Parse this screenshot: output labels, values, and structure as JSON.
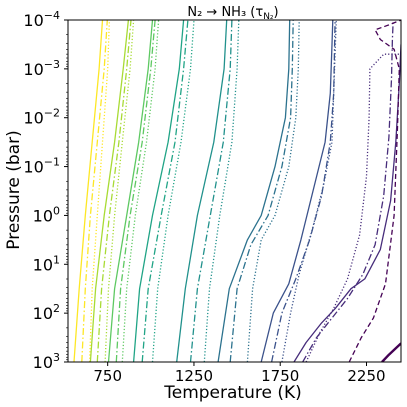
{
  "chart_data": {
    "type": "line",
    "title": "N₂ → NH₃ (τ",
    "title_subscript": "N₂",
    "title_tail": ")",
    "xlabel": "Temperature (K)",
    "ylabel": "Pressure (bar)",
    "xlim": [
      520,
      2450
    ],
    "ylim_log10": [
      -4,
      3
    ],
    "y_inverted": true,
    "y_scale": "log",
    "grid": false,
    "legend": "none",
    "x_ticks": [
      {
        "value": 750,
        "label": "750"
      },
      {
        "value": 1250,
        "label": "1250"
      },
      {
        "value": 1750,
        "label": "1750"
      },
      {
        "value": 2250,
        "label": "2250"
      }
    ],
    "y_ticks": [
      {
        "value": -4,
        "base": "10",
        "exp": "−4"
      },
      {
        "value": -3,
        "base": "10",
        "exp": "−3"
      },
      {
        "value": -2,
        "base": "10",
        "exp": "−2"
      },
      {
        "value": -1,
        "base": "10",
        "exp": "−1"
      },
      {
        "value": 0,
        "base": "10",
        "exp": "0"
      },
      {
        "value": 1,
        "base": "10",
        "exp": "1"
      },
      {
        "value": 2,
        "base": "10",
        "exp": "2"
      },
      {
        "value": 3,
        "base": "10",
        "exp": "3"
      }
    ],
    "series": [
      {
        "color": "#fde725",
        "dash": "solid",
        "points": [
          [
            555,
            3
          ],
          [
            585,
            1.5
          ],
          [
            620,
            0
          ],
          [
            660,
            -1.5
          ],
          [
            700,
            -3
          ],
          [
            720,
            -4
          ]
        ]
      },
      {
        "color": "#fde725",
        "dash": "dashdot",
        "points": [
          [
            600,
            3
          ],
          [
            620,
            1.5
          ],
          [
            650,
            0
          ],
          [
            690,
            -1.5
          ],
          [
            730,
            -3
          ],
          [
            748,
            -4
          ]
        ]
      },
      {
        "color": "#fde725",
        "dash": "dotted",
        "points": [
          [
            645,
            3
          ],
          [
            660,
            1.5
          ],
          [
            690,
            0
          ],
          [
            720,
            -1.5
          ],
          [
            750,
            -3
          ],
          [
            760,
            -4
          ]
        ]
      },
      {
        "color": "#a8db34",
        "dash": "solid",
        "points": [
          [
            650,
            3
          ],
          [
            680,
            1.5
          ],
          [
            730,
            0
          ],
          [
            790,
            -1.5
          ],
          [
            840,
            -3
          ],
          [
            870,
            -4
          ]
        ]
      },
      {
        "color": "#a8db34",
        "dash": "dashdot",
        "points": [
          [
            690,
            3
          ],
          [
            715,
            1.5
          ],
          [
            760,
            0
          ],
          [
            815,
            -1.5
          ],
          [
            860,
            -3
          ],
          [
            885,
            -4
          ]
        ]
      },
      {
        "color": "#a8db34",
        "dash": "dotted",
        "points": [
          [
            735,
            3
          ],
          [
            755,
            1.5
          ],
          [
            790,
            0
          ],
          [
            835,
            -1.5
          ],
          [
            880,
            -3
          ],
          [
            900,
            -4
          ]
        ]
      },
      {
        "color": "#5ec962",
        "dash": "solid",
        "points": [
          [
            755,
            3
          ],
          [
            790,
            1.5
          ],
          [
            860,
            0
          ],
          [
            930,
            -1.5
          ],
          [
            985,
            -3
          ],
          [
            1010,
            -4
          ]
        ]
      },
      {
        "color": "#5ec962",
        "dash": "dashdot",
        "points": [
          [
            800,
            3
          ],
          [
            825,
            1.5
          ],
          [
            880,
            0
          ],
          [
            950,
            -1.5
          ],
          [
            1000,
            -3
          ],
          [
            1025,
            -4
          ]
        ]
      },
      {
        "color": "#5ec962",
        "dash": "dotted",
        "points": [
          [
            835,
            3
          ],
          [
            860,
            1.5
          ],
          [
            910,
            0
          ],
          [
            975,
            -1.5
          ],
          [
            1025,
            -3
          ],
          [
            1045,
            -4
          ]
        ]
      },
      {
        "color": "#20a486",
        "dash": "solid",
        "points": [
          [
            900,
            3
          ],
          [
            935,
            1.5
          ],
          [
            1010,
            0
          ],
          [
            1100,
            -1.5
          ],
          [
            1165,
            -3
          ],
          [
            1190,
            -4
          ]
        ]
      },
      {
        "color": "#20a486",
        "dash": "dashdot",
        "points": [
          [
            950,
            3
          ],
          [
            985,
            1.5
          ],
          [
            1060,
            0
          ],
          [
            1140,
            -1.5
          ],
          [
            1190,
            -3
          ],
          [
            1215,
            -4
          ]
        ]
      },
      {
        "color": "#20a486",
        "dash": "dotted",
        "points": [
          [
            1010,
            3
          ],
          [
            1040,
            1.5
          ],
          [
            1100,
            0
          ],
          [
            1175,
            -1.5
          ],
          [
            1230,
            -3
          ],
          [
            1250,
            -4
          ]
        ]
      },
      {
        "color": "#21918c",
        "dash": "solid",
        "points": [
          [
            1150,
            3
          ],
          [
            1200,
            1.5
          ],
          [
            1270,
            0
          ],
          [
            1365,
            -1.5
          ],
          [
            1425,
            -3
          ],
          [
            1440,
            -4
          ]
        ]
      },
      {
        "color": "#21918c",
        "dash": "dashdot",
        "points": [
          [
            1230,
            3
          ],
          [
            1270,
            1.5
          ],
          [
            1345,
            0
          ],
          [
            1420,
            -1.5
          ],
          [
            1460,
            -3
          ],
          [
            1470,
            -4
          ]
        ]
      },
      {
        "color": "#21918c",
        "dash": "dotted",
        "points": [
          [
            1310,
            3
          ],
          [
            1340,
            1.5
          ],
          [
            1400,
            0
          ],
          [
            1470,
            -1.5
          ],
          [
            1500,
            -3
          ],
          [
            1510,
            -4
          ]
        ]
      },
      {
        "color": "#2c728e",
        "dash": "solid",
        "points": [
          [
            1390,
            3
          ],
          [
            1455,
            1.5
          ],
          [
            1560,
            0.5
          ],
          [
            1640,
            0
          ],
          [
            1720,
            -1
          ],
          [
            1780,
            -2
          ],
          [
            1800,
            -3
          ],
          [
            1805,
            -4
          ]
        ]
      },
      {
        "color": "#2c728e",
        "dash": "dashdot",
        "points": [
          [
            1460,
            3
          ],
          [
            1500,
            1.5
          ],
          [
            1580,
            0.6
          ],
          [
            1680,
            0
          ],
          [
            1760,
            -1
          ],
          [
            1810,
            -2
          ],
          [
            1820,
            -3
          ],
          [
            1825,
            -4
          ]
        ]
      },
      {
        "color": "#2c728e",
        "dash": "dotted",
        "points": [
          [
            1560,
            3
          ],
          [
            1590,
            1.5
          ],
          [
            1640,
            0.5
          ],
          [
            1720,
            0
          ],
          [
            1800,
            -1
          ],
          [
            1840,
            -2
          ],
          [
            1855,
            -3
          ],
          [
            1860,
            -4
          ]
        ]
      },
      {
        "color": "#3b528b",
        "dash": "solid",
        "points": [
          [
            1640,
            3
          ],
          [
            1710,
            2
          ],
          [
            1800,
            1.4
          ],
          [
            1870,
            0.5
          ],
          [
            1940,
            -0.5
          ],
          [
            2010,
            -1.5
          ],
          [
            2040,
            -2.5
          ],
          [
            2050,
            -3.5
          ],
          [
            2055,
            -4
          ]
        ]
      },
      {
        "color": "#3b528b",
        "dash": "dashdot",
        "points": [
          [
            1700,
            3
          ],
          [
            1760,
            2
          ],
          [
            1840,
            1.3
          ],
          [
            1920,
            0.5
          ],
          [
            1990,
            -0.4
          ],
          [
            2040,
            -1.5
          ],
          [
            2060,
            -2.5
          ],
          [
            2065,
            -3.5
          ],
          [
            2068,
            -4
          ]
        ]
      },
      {
        "color": "#3b528b",
        "dash": "dotted",
        "points": [
          [
            1760,
            3
          ],
          [
            1810,
            2
          ],
          [
            1860,
            1.2
          ],
          [
            1935,
            0.3
          ],
          [
            2000,
            -0.6
          ],
          [
            2050,
            -1.5
          ],
          [
            2060,
            -2.5
          ],
          [
            2070,
            -3.5
          ],
          [
            2075,
            -4
          ]
        ]
      },
      {
        "color": "#472d7b",
        "dash": "solid",
        "points": [
          [
            1830,
            3
          ],
          [
            1900,
            2.6
          ],
          [
            1990,
            2.2
          ],
          [
            2070,
            1.9
          ],
          [
            2160,
            1.5
          ],
          [
            2240,
            1.3
          ],
          [
            2330,
            0.7
          ],
          [
            2390,
            -0.3
          ],
          [
            2420,
            -1.5
          ],
          [
            2440,
            -2.7
          ],
          [
            2450,
            -3.5
          ]
        ]
      },
      {
        "color": "#472d7b",
        "dash": "dashdot",
        "points": [
          [
            1880,
            3
          ],
          [
            1960,
            2.5
          ],
          [
            2050,
            2.1
          ],
          [
            2140,
            1.7
          ],
          [
            2230,
            1.2
          ],
          [
            2300,
            0.6
          ],
          [
            2350,
            -0.4
          ],
          [
            2380,
            -1.6
          ],
          [
            2395,
            -2.8
          ],
          [
            2400,
            -3.6
          ],
          [
            2405,
            -4
          ]
        ]
      },
      {
        "color": "#472d7b",
        "dash": "dotted",
        "points": [
          [
            1900,
            3
          ],
          [
            1980,
            2.4
          ],
          [
            2060,
            1.9
          ],
          [
            2140,
            1.3
          ],
          [
            2210,
            0.4
          ],
          [
            2250,
            -0.8
          ],
          [
            2265,
            -2
          ],
          [
            2270,
            -3
          ],
          [
            2350,
            -3.3
          ],
          [
            2450,
            -3.3
          ]
        ]
      },
      {
        "color": "#440154",
        "dash": "dashed",
        "points": [
          [
            2150,
            3
          ],
          [
            2220,
            2.5
          ],
          [
            2290,
            2.1
          ],
          [
            2360,
            1.4
          ],
          [
            2410,
            0
          ],
          [
            2430,
            -1.8
          ],
          [
            2440,
            -3
          ],
          [
            2410,
            -3.4
          ],
          [
            2370,
            -3.5
          ],
          [
            2330,
            -3.6
          ],
          [
            2300,
            -3.8
          ],
          [
            2380,
            -3.9
          ],
          [
            2450,
            -4
          ]
        ]
      },
      {
        "color": "#440154",
        "dash": "solid",
        "points": [
          [
            2340,
            3
          ],
          [
            2380,
            2.85
          ],
          [
            2420,
            2.72
          ],
          [
            2450,
            2.62
          ]
        ]
      }
    ]
  }
}
